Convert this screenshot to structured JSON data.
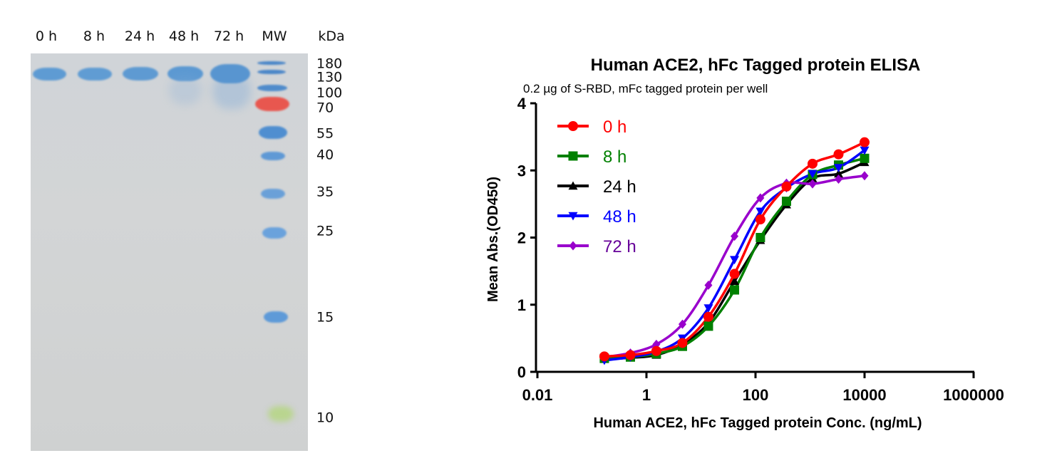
{
  "gel": {
    "lanes": [
      "0 h",
      "8 h",
      "24 h",
      "48 h",
      "72 h",
      "MW"
    ],
    "unit_label": "kDa",
    "mw_markers": [
      "180",
      "130",
      "100",
      "70",
      "55",
      "40",
      "35",
      "25",
      "15",
      "10"
    ],
    "colors": {
      "background": "#d3d5d6",
      "band": "#5b98d2",
      "marker_red": "#e8504a",
      "marker_green": "#b6d88a"
    }
  },
  "chart_data": {
    "type": "line",
    "title": "Human ACE2, hFc Tagged protein ELISA",
    "subtitle": "0.2 µg of S-RBD, mFc tagged protein per well",
    "xlabel": "Human ACE2, hFc Tagged protein Conc. (ng/mL)",
    "ylabel": "Mean Abs.(OD450)",
    "xscale": "log10",
    "xlim": [
      0.01,
      1000000
    ],
    "ylim": [
      0,
      4
    ],
    "x_ticks": [
      "0.01",
      "1",
      "100",
      "10000",
      "1000000"
    ],
    "x_tick_values": [
      0.01,
      1,
      100,
      10000,
      1000000
    ],
    "y_ticks": [
      "0",
      "1",
      "2",
      "3",
      "4"
    ],
    "y_tick_values": [
      0,
      1,
      2,
      3,
      4
    ],
    "legend_position": "top-left",
    "x": [
      0.169,
      0.508,
      1.52,
      4.57,
      13.7,
      41.2,
      123,
      370,
      1111,
      3333,
      10000
    ],
    "series": [
      {
        "name": "0 h",
        "color": "#ff0000",
        "marker": "circle",
        "values": [
          0.23,
          0.25,
          0.31,
          0.43,
          0.82,
          1.46,
          2.27,
          2.76,
          3.1,
          3.24,
          3.42
        ]
      },
      {
        "name": "8 h",
        "color": "#008000",
        "marker": "square",
        "values": [
          0.2,
          0.22,
          0.27,
          0.38,
          0.68,
          1.22,
          2.0,
          2.54,
          2.94,
          3.08,
          3.18
        ]
      },
      {
        "name": "24 h",
        "color": "#000000",
        "marker": "triangle-up",
        "values": [
          0.19,
          0.21,
          0.25,
          0.41,
          0.73,
          1.35,
          1.96,
          2.49,
          2.88,
          2.95,
          3.12
        ]
      },
      {
        "name": "48 h",
        "color": "#0000ff",
        "marker": "triangle-down",
        "values": [
          0.17,
          0.22,
          0.3,
          0.5,
          0.95,
          1.67,
          2.39,
          2.74,
          2.95,
          3.04,
          3.3
        ]
      },
      {
        "name": "72 h",
        "color": "#9900cc",
        "label_color": "#660099",
        "marker": "diamond",
        "values": [
          0.22,
          0.28,
          0.41,
          0.71,
          1.29,
          2.02,
          2.59,
          2.81,
          2.8,
          2.87,
          2.92
        ]
      }
    ]
  }
}
